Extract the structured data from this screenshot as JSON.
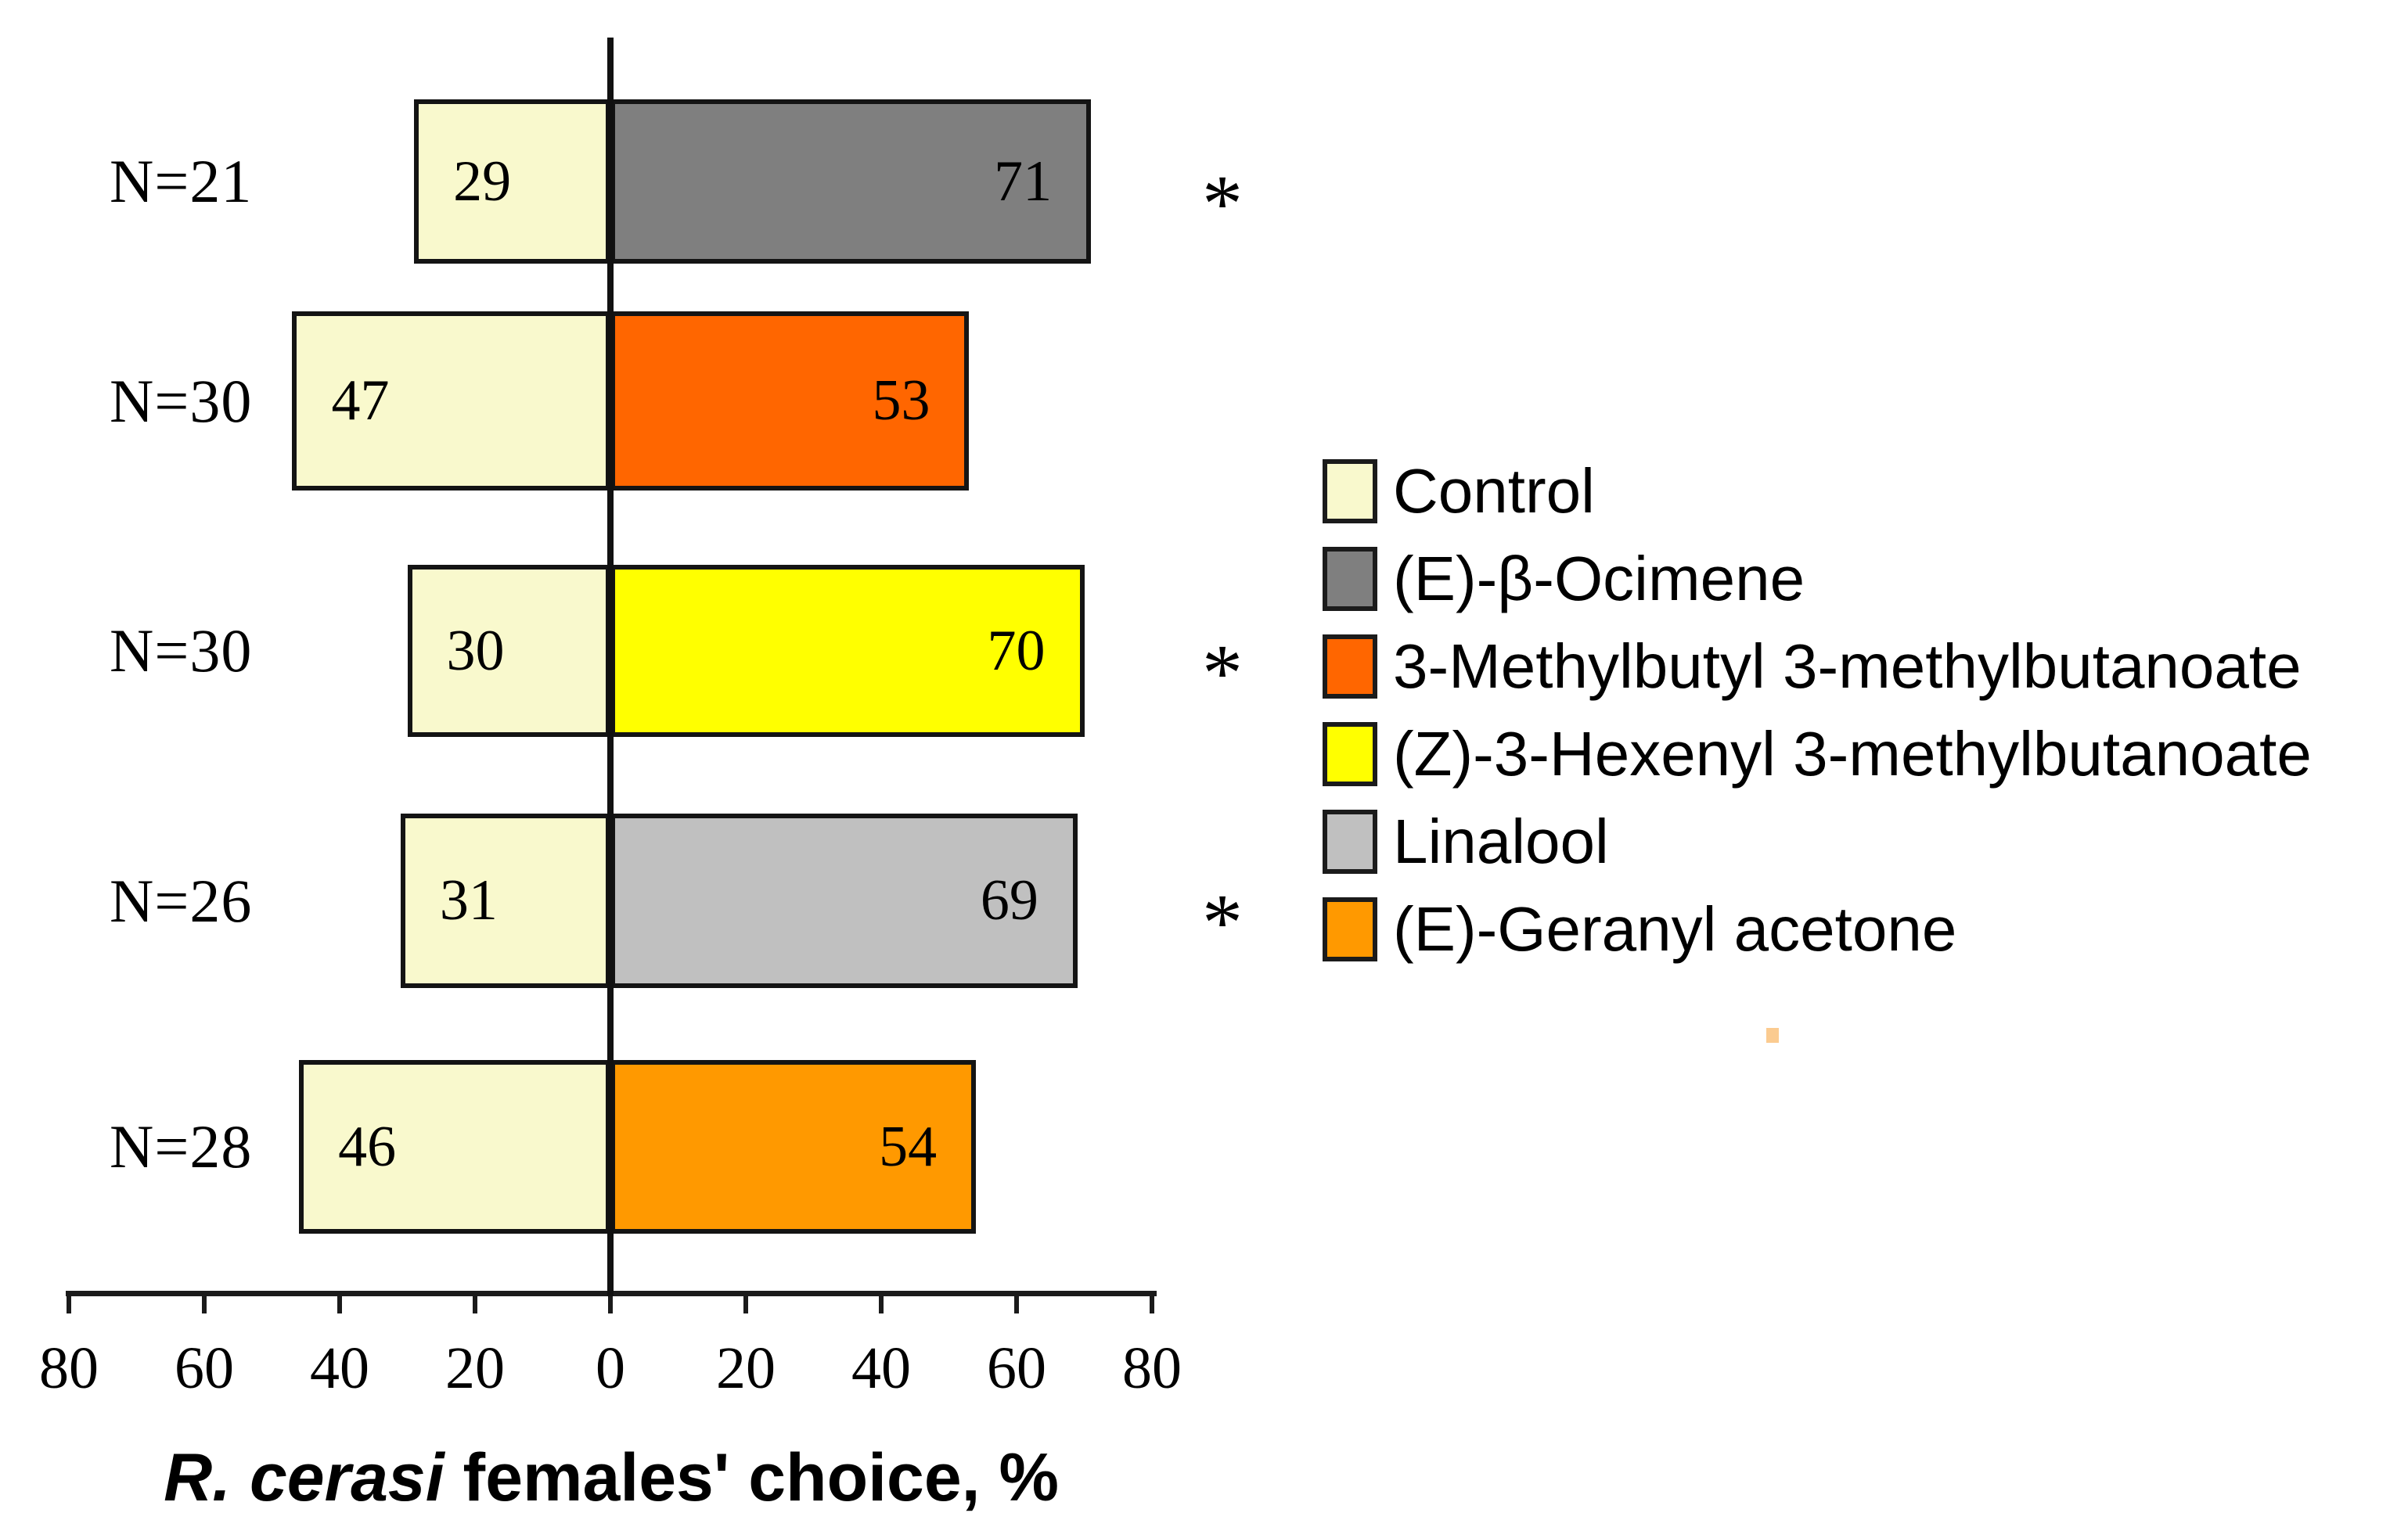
{
  "chart_data": {
    "type": "bar",
    "variant": "diverging-horizontal-paired-choice",
    "title": "",
    "xlabel": "R. cerasi females' choice, %",
    "xlabel_italic_part": "R. cerasi",
    "xlabel_rest_part": " females' choice, %",
    "x_axis": {
      "min": -80,
      "max": 80,
      "tick_step": 20,
      "tick_labels": [
        "80",
        "60",
        "40",
        "20",
        "0",
        "20",
        "40",
        "60",
        "80"
      ],
      "grid": false
    },
    "control_color": "#F9F9CD",
    "significance_marker": "*",
    "rows": [
      {
        "n_label": "N=21",
        "control_value": 29,
        "treatment": "(E)-β-Ocimene",
        "treatment_value": 71,
        "treatment_color": "#7F7F7F",
        "significance": "*"
      },
      {
        "n_label": "N=30",
        "control_value": 47,
        "treatment": "3-Methylbutyl 3-methylbutanoate",
        "treatment_value": 53,
        "treatment_color": "#FF6600",
        "significance": ""
      },
      {
        "n_label": "N=30",
        "control_value": 30,
        "treatment": "(Z)-3-Hexenyl 3-methylbutanoate",
        "treatment_value": 70,
        "treatment_color": "#FFFF00",
        "significance": "*"
      },
      {
        "n_label": "N=26",
        "control_value": 31,
        "treatment": "Linalool",
        "treatment_value": 69,
        "treatment_color": "#C0C0C0",
        "significance": "*"
      },
      {
        "n_label": "N=28",
        "control_value": 46,
        "treatment": "(E)-Geranyl acetone",
        "treatment_value": 54,
        "treatment_color": "#FF9900",
        "significance": ""
      }
    ],
    "legend": {
      "position": "right",
      "items": [
        {
          "label": "Control",
          "color": "#F9F9CD"
        },
        {
          "label": "(E)-β-Ocimene",
          "color": "#7F7F7F"
        },
        {
          "label": "3-Methylbutyl 3-methylbutanoate",
          "color": "#FF6600"
        },
        {
          "label": "(Z)-3-Hexenyl 3-methylbutanoate",
          "color": "#FFFF00"
        },
        {
          "label": "Linalool",
          "color": "#C0C0C0"
        },
        {
          "label": "(E)-Geranyl acetone",
          "color": "#FF9900"
        }
      ]
    }
  }
}
